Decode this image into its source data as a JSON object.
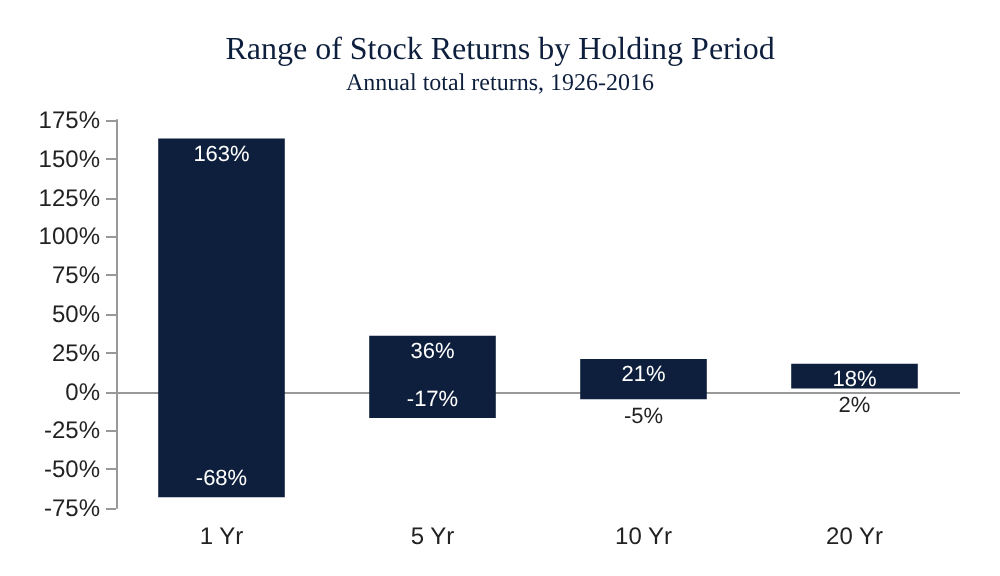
{
  "chart_data": {
    "type": "bar",
    "title": "Range of Stock Returns by Holding Period",
    "subtitle": "Annual total returns, 1926-2016",
    "categories": [
      "1 Yr",
      "5 Yr",
      "10 Yr",
      "20 Yr"
    ],
    "base": [
      -68,
      -17,
      -5,
      2
    ],
    "values": [
      231,
      53,
      26,
      16
    ],
    "color": "#0d1f3c",
    "ylim": [
      -75,
      175
    ],
    "yticks": [
      {
        "value": -75,
        "label": "-75%"
      },
      {
        "value": -50,
        "label": "-50%"
      },
      {
        "value": -25,
        "label": "-25%"
      },
      {
        "value": 0,
        "label": "0%"
      },
      {
        "value": 25,
        "label": "25%"
      },
      {
        "value": 50,
        "label": "50%"
      },
      {
        "value": 75,
        "label": "75%"
      },
      {
        "value": 100,
        "label": "100%"
      },
      {
        "value": 125,
        "label": "125%"
      },
      {
        "value": 150,
        "label": "150%"
      },
      {
        "value": 175,
        "label": "175%"
      }
    ],
    "grid": false,
    "ref_lines": [
      {
        "axis": "y",
        "value": 0,
        "color": "#999999"
      }
    ],
    "annotations": [
      {
        "text": "163%",
        "x": "1 Yr",
        "y": 163
      },
      {
        "text": "-68%",
        "x": "1 Yr",
        "y": -68
      },
      {
        "text": "36%",
        "x": "5 Yr",
        "y": 36
      },
      {
        "text": "-17%",
        "x": "5 Yr",
        "y": -17
      },
      {
        "text": "21%",
        "x": "10 Yr",
        "y": 21
      },
      {
        "text": "-5%",
        "x": "10 Yr",
        "y": -5
      },
      {
        "text": "18%",
        "x": "20 Yr",
        "y": 18
      },
      {
        "text": "2%",
        "x": "20 Yr",
        "y": 2
      }
    ]
  }
}
